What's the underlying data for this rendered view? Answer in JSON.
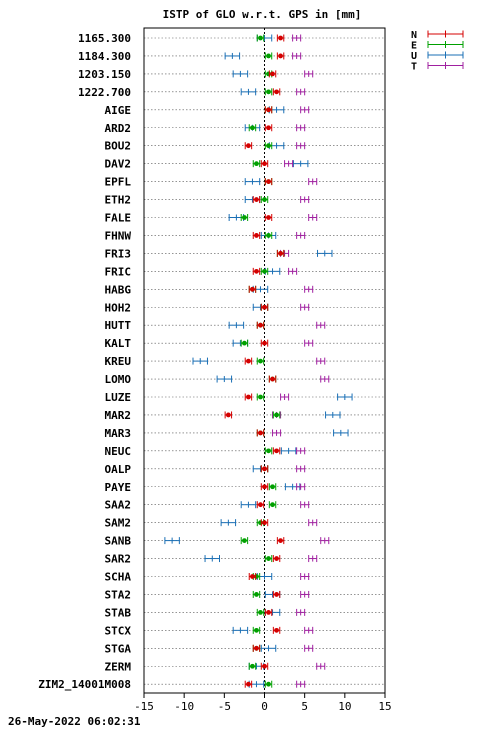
{
  "chart_data": {
    "type": "scatter",
    "title": "ISTP of GLO w.r.t. GPS in [mm]",
    "xlim": [
      -15,
      15
    ],
    "xticks": [
      -15,
      -10,
      -5,
      0,
      5,
      10,
      15
    ],
    "grid": true,
    "legend_position": "top-right",
    "series_colors": {
      "N": "#d40000",
      "E": "#00a000",
      "U": "#1a6fb5",
      "T": "#a020a0"
    },
    "legend": [
      {
        "key": "N",
        "label": "N"
      },
      {
        "key": "E",
        "label": "E"
      },
      {
        "key": "U",
        "label": "U"
      },
      {
        "key": "T",
        "label": "T"
      }
    ],
    "categories": [
      "1165.300",
      "1184.300",
      "1203.150",
      "1222.700",
      "AIGE",
      "ARD2",
      "BOU2",
      "DAV2",
      "EPFL",
      "ETH2",
      "FALE",
      "FHNW",
      "FRI3",
      "FRIC",
      "HABG",
      "HOH2",
      "HUTT",
      "KALT",
      "KREU",
      "LOMO",
      "LUZE",
      "MAR2",
      "MAR3",
      "NEUC",
      "OALP",
      "PAYE",
      "SAA2",
      "SAM2",
      "SANB",
      "SAR2",
      "SCHA",
      "STA2",
      "STAB",
      "STCX",
      "STGA",
      "ZERM",
      "ZIM2_14001M008"
    ],
    "series": [
      {
        "name": "N",
        "values": [
          2.0,
          2.0,
          1.0,
          1.5,
          0.5,
          0.5,
          -2.0,
          0.0,
          0.5,
          -1.0,
          0.5,
          -1.0,
          2.0,
          -1.0,
          -1.5,
          0.0,
          -0.5,
          0.0,
          -2.0,
          1.0,
          -2.0,
          -4.5,
          -0.5,
          1.5,
          0.0,
          0.0,
          -0.5,
          0.0,
          2.0,
          1.5,
          -1.5,
          1.5,
          0.5,
          1.5,
          -1.0,
          0.0,
          -2.0
        ],
        "errors": [
          0.4,
          0.4,
          0.4,
          0.4,
          0.4,
          0.4,
          0.4,
          0.4,
          0.4,
          0.4,
          0.4,
          0.4,
          0.4,
          0.4,
          0.4,
          0.4,
          0.4,
          0.4,
          0.4,
          0.4,
          0.4,
          0.4,
          0.4,
          0.4,
          0.4,
          0.4,
          0.4,
          0.4,
          0.4,
          0.4,
          0.4,
          0.4,
          0.4,
          0.4,
          0.4,
          0.4,
          0.4
        ]
      },
      {
        "name": "E",
        "values": [
          -0.5,
          0.5,
          0.5,
          0.5,
          0.5,
          -1.5,
          0.5,
          -1.0,
          0.5,
          0.0,
          -2.5,
          0.5,
          2.0,
          0.0,
          -1.5,
          0.0,
          -0.5,
          -2.5,
          -0.5,
          1.0,
          -0.5,
          1.5,
          -0.5,
          0.5,
          0.0,
          1.0,
          1.0,
          -0.5,
          -2.5,
          0.5,
          -1.0,
          -1.0,
          -0.5,
          -1.0,
          -1.0,
          -1.5,
          0.5
        ],
        "errors": [
          0.4,
          0.4,
          0.4,
          0.4,
          0.4,
          0.4,
          0.4,
          0.4,
          0.4,
          0.4,
          0.4,
          0.4,
          0.4,
          0.4,
          0.4,
          0.4,
          0.4,
          0.4,
          0.4,
          0.4,
          0.4,
          0.4,
          0.4,
          0.4,
          0.4,
          0.4,
          0.4,
          0.4,
          0.4,
          0.4,
          0.4,
          0.4,
          0.4,
          0.4,
          0.4,
          0.4,
          0.4
        ]
      },
      {
        "name": "U",
        "values": [
          0.0,
          -4.0,
          -3.0,
          -2.0,
          1.5,
          -1.5,
          1.5,
          4.5,
          -1.5,
          -1.5,
          -3.5,
          0.5,
          7.5,
          1.0,
          -0.5,
          -0.5,
          -3.5,
          -3.0,
          -8.0,
          -5.0,
          10.0,
          8.5,
          9.5,
          3.0,
          -0.5,
          3.5,
          -2.0,
          -4.5,
          -11.5,
          -6.5,
          0.0,
          1.0,
          1.0,
          -3.0,
          0.5,
          -1.0,
          -1.0
        ],
        "errors": [
          0.9,
          0.9,
          0.9,
          0.9,
          0.9,
          0.9,
          0.9,
          0.9,
          0.9,
          0.9,
          0.9,
          0.9,
          0.9,
          0.9,
          0.9,
          0.9,
          0.9,
          0.9,
          0.9,
          0.9,
          0.9,
          0.9,
          0.9,
          0.9,
          0.9,
          0.9,
          0.9,
          0.9,
          0.9,
          0.9,
          0.9,
          0.9,
          0.9,
          0.9,
          0.9,
          0.9,
          0.9
        ]
      },
      {
        "name": "T",
        "values": [
          4.0,
          4.0,
          5.5,
          4.5,
          5.0,
          4.5,
          4.5,
          3.0,
          6.0,
          5.0,
          6.0,
          4.5,
          2.5,
          3.5,
          5.5,
          5.0,
          7.0,
          5.5,
          7.0,
          7.5,
          2.5,
          1.5,
          1.5,
          4.5,
          4.5,
          4.5,
          5.0,
          6.0,
          7.5,
          6.0,
          5.0,
          5.0,
          4.5,
          5.5,
          5.5,
          7.0,
          4.5
        ],
        "errors": [
          0.5,
          0.5,
          0.5,
          0.5,
          0.5,
          0.5,
          0.5,
          0.5,
          0.5,
          0.5,
          0.5,
          0.5,
          0.5,
          0.5,
          0.5,
          0.5,
          0.5,
          0.5,
          0.5,
          0.5,
          0.5,
          0.5,
          0.5,
          0.5,
          0.5,
          0.5,
          0.5,
          0.5,
          0.5,
          0.5,
          0.5,
          0.5,
          0.5,
          0.5,
          0.5,
          0.5,
          0.5
        ]
      }
    ]
  },
  "footer": {
    "timestamp": "26-May-2022 06:02:31"
  }
}
